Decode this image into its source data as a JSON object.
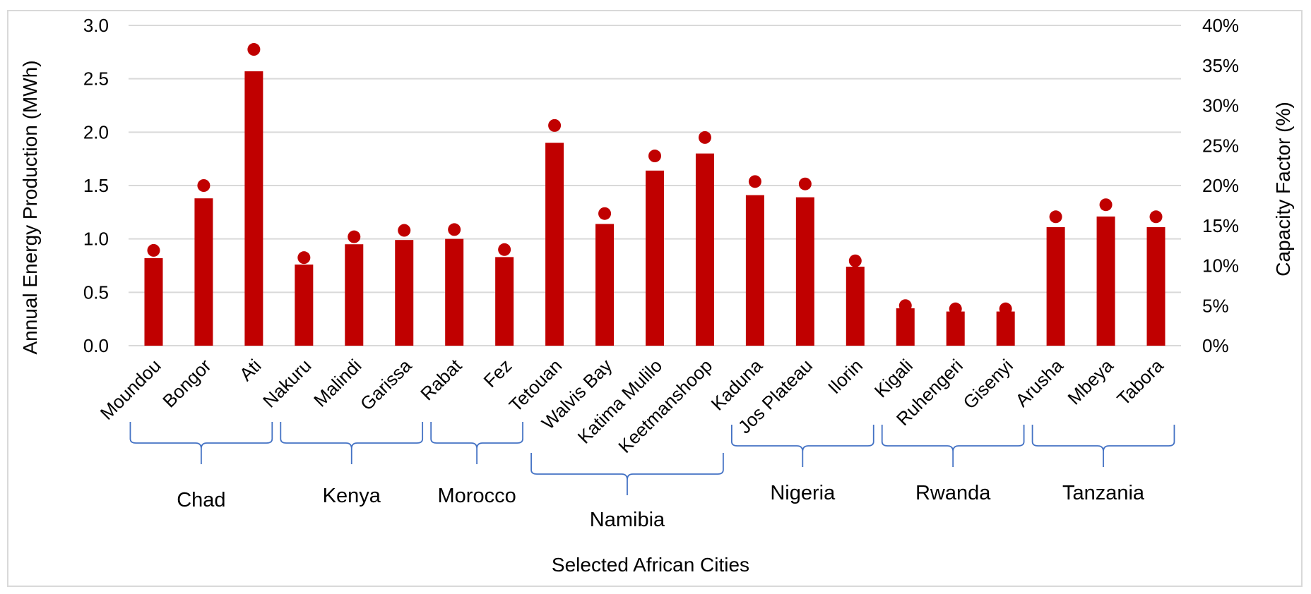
{
  "chart_data": {
    "type": "bar",
    "xlabel": "Selected African Cities",
    "ylabel": "Annual Energy Production (MWh)",
    "y2label": "Capacity Factor (%)",
    "ylim": [
      0,
      3.0
    ],
    "y2lim": [
      0,
      40
    ],
    "yticks": [
      "0.0",
      "0.5",
      "1.0",
      "1.5",
      "2.0",
      "2.5",
      "3.0"
    ],
    "y2ticks": [
      "0%",
      "5%",
      "10%",
      "15%",
      "20%",
      "25%",
      "30%",
      "35%",
      "40%"
    ],
    "grid": true,
    "categories": [
      "Moundou",
      "Bongor",
      "Ati",
      "Nakuru",
      "Malindi",
      "Garissa",
      "Rabat",
      "Fez",
      "Tetouan",
      "Walvis Bay",
      "Katima Mulilo",
      "Keetmanshoop",
      "Kaduna",
      "Jos Plateau",
      "Ilorin",
      "Kigali",
      "Ruhengeri",
      "Gisenyi",
      "Arusha",
      "Mbeya",
      "Tabora"
    ],
    "series": [
      {
        "type": "bar",
        "axis": "left",
        "values": [
          0.82,
          1.38,
          2.57,
          0.76,
          0.95,
          0.99,
          1.0,
          0.83,
          1.9,
          1.14,
          1.64,
          1.8,
          1.41,
          1.39,
          0.74,
          0.35,
          0.32,
          0.32,
          1.11,
          1.21,
          1.11
        ]
      },
      {
        "type": "scatter",
        "axis": "right",
        "values": [
          11.9,
          20.0,
          37.0,
          11.0,
          13.6,
          14.4,
          14.5,
          12.0,
          27.5,
          16.5,
          23.7,
          26.0,
          20.5,
          20.2,
          10.6,
          5.0,
          4.6,
          4.6,
          16.1,
          17.6,
          16.1
        ]
      }
    ],
    "groups": [
      {
        "label": "Chad",
        "from": 0,
        "to": 2
      },
      {
        "label": "Kenya",
        "from": 3,
        "to": 5
      },
      {
        "label": "Morocco",
        "from": 6,
        "to": 7
      },
      {
        "label": "Namibia",
        "from": 8,
        "to": 11
      },
      {
        "label": "Nigeria",
        "from": 12,
        "to": 14
      },
      {
        "label": "Rwanda",
        "from": 15,
        "to": 17
      },
      {
        "label": "Tanzania",
        "from": 18,
        "to": 20
      }
    ],
    "colors": {
      "bar": "#c00000",
      "marker": "#c00000",
      "grid": "#d9d9d9",
      "bracket": "#4472c4"
    }
  }
}
